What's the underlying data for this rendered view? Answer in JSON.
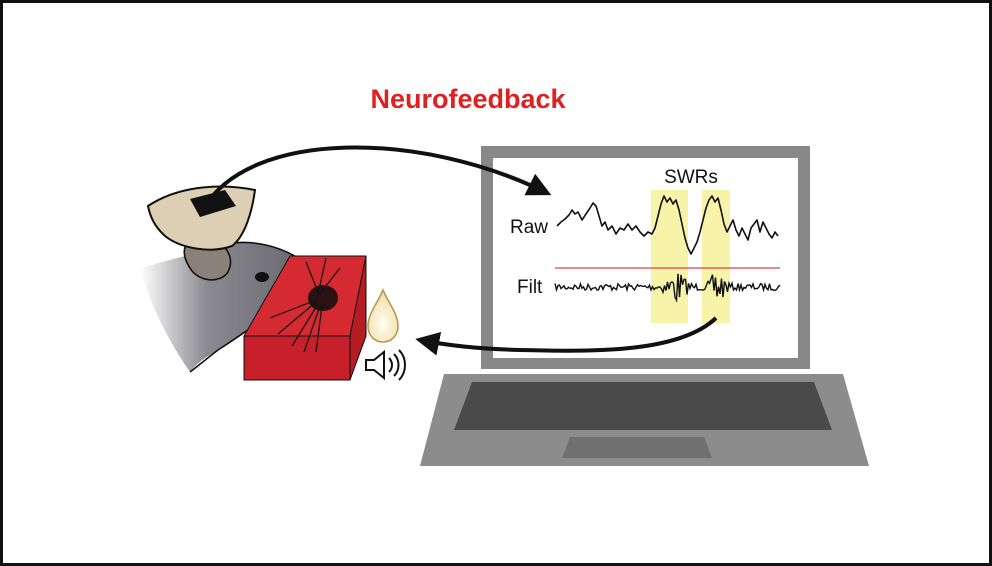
{
  "title": "Neurofeedback",
  "labels": {
    "swrs": "SWRs",
    "raw": "Raw",
    "filt": "Filt"
  },
  "icons": [
    "electrode-implant-icon",
    "mouse-icon",
    "nose-poke-port-icon",
    "water-drop-icon",
    "speaker-icon",
    "laptop-icon",
    "feedback-arrow-icon"
  ],
  "colors": {
    "title": "#e02020",
    "port": "#c8202a",
    "highlight": "#f7f3a8",
    "threshold": "#e04040",
    "laptop_frame": "#888888",
    "keyboard": "#4a4a4a",
    "mouse_body": "#5e5e64",
    "implant": "#dccfb4"
  }
}
